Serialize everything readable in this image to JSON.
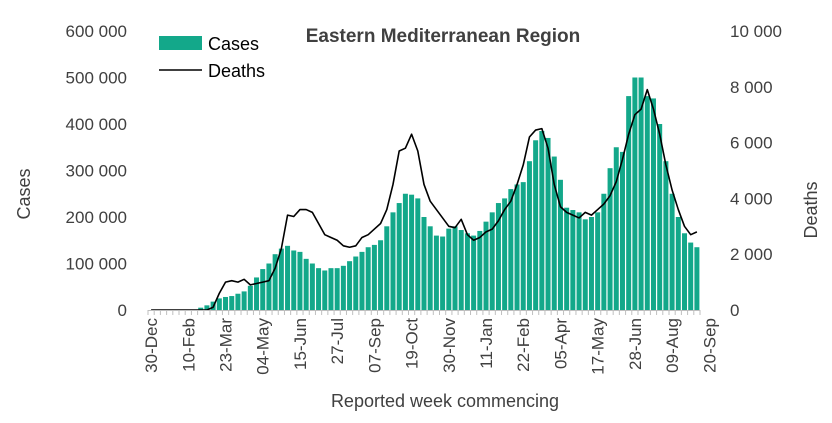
{
  "chart_data": {
    "type": "bar",
    "title": "Eastern Mediterranean Region",
    "xlabel": "Reported week commencing",
    "ylabel": "Cases",
    "y2label": "Deaths",
    "ylim": [
      0,
      600000
    ],
    "y2lim": [
      0,
      10000
    ],
    "y_ticks": [
      "0",
      "100 000",
      "200 000",
      "300 000",
      "400 000",
      "500 000",
      "600 000"
    ],
    "y2_ticks": [
      "0",
      "2 000",
      "4 000",
      "6 000",
      "8 000",
      "10 000"
    ],
    "x_tick_labels": [
      "30-Dec",
      "10-Feb",
      "23-Mar",
      "04-May",
      "15-Jun",
      "27-Jul",
      "07-Sep",
      "19-Oct",
      "30-Nov",
      "11-Jan",
      "22-Feb",
      "05-Apr",
      "17-May",
      "28-Jun",
      "09-Aug",
      "20-Sep"
    ],
    "legend_position": "top-left",
    "grid": false,
    "colors": {
      "cases": "#13a88a",
      "deaths": "#000000",
      "text": "#404040",
      "axis": "#bfbfbf"
    },
    "series": [
      {
        "name": "Cases",
        "type": "bar",
        "axis": "left",
        "values": [
          0,
          0,
          0,
          0,
          0,
          0,
          0,
          1000,
          5000,
          10000,
          18000,
          25000,
          28000,
          30000,
          35000,
          40000,
          52000,
          70000,
          88000,
          100000,
          120000,
          132000,
          138000,
          128000,
          125000,
          110000,
          100000,
          90000,
          85000,
          90000,
          90000,
          95000,
          105000,
          115000,
          125000,
          135000,
          140000,
          150000,
          180000,
          210000,
          230000,
          250000,
          248000,
          240000,
          200000,
          180000,
          160000,
          158000,
          175000,
          180000,
          172000,
          165000,
          160000,
          170000,
          190000,
          210000,
          230000,
          240000,
          260000,
          270000,
          275000,
          320000,
          365000,
          385000,
          370000,
          330000,
          280000,
          220000,
          215000,
          210000,
          195000,
          200000,
          210000,
          250000,
          305000,
          350000,
          340000,
          460000,
          500000,
          500000,
          460000,
          455000,
          400000,
          320000,
          250000,
          200000,
          165000,
          145000,
          135000
        ]
      },
      {
        "name": "Deaths",
        "type": "line",
        "axis": "right",
        "values": [
          0,
          0,
          0,
          0,
          0,
          0,
          0,
          0,
          0,
          0,
          100,
          600,
          1000,
          1050,
          1000,
          1100,
          900,
          950,
          1000,
          1050,
          1500,
          2200,
          3400,
          3350,
          3600,
          3600,
          3500,
          3100,
          2700,
          2600,
          2500,
          2300,
          2250,
          2300,
          2600,
          2700,
          2900,
          3100,
          3600,
          4500,
          5700,
          5800,
          6300,
          5700,
          4500,
          3900,
          3600,
          3300,
          3000,
          2950,
          3250,
          2700,
          2500,
          2600,
          2800,
          2900,
          3200,
          3600,
          3900,
          4500,
          5200,
          6200,
          6450,
          6500,
          5800,
          4500,
          3700,
          3500,
          3400,
          3300,
          3500,
          3400,
          3600,
          3800,
          4100,
          4600,
          5400,
          6300,
          7000,
          7200,
          7900,
          7200,
          6300,
          5200,
          4300,
          3600,
          3000,
          2700,
          2800
        ]
      }
    ]
  }
}
